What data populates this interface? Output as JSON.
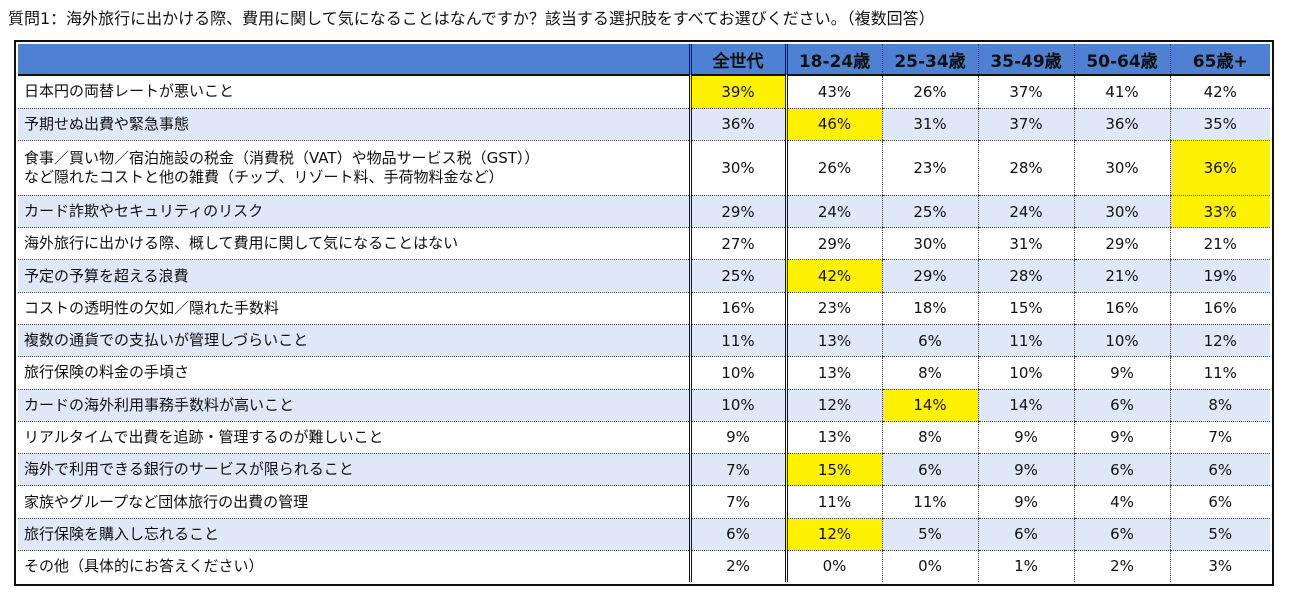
{
  "title": "質問1：海外旅行に出かける際、費用に関して気になることはなんですか？該当する選択肢をすべてお選びください。（複数回答）",
  "colors": {
    "header_bg": "#4f81d3",
    "alt_row_bg": "#dfe8f8",
    "highlight": "#fff200"
  },
  "chart_data": {
    "type": "table",
    "columns": [
      "",
      "全世代",
      "18-24歳",
      "25-34歳",
      "35-49歳",
      "50-64歳",
      "65歳+"
    ],
    "rows": [
      {
        "label": "日本円の両替レートが悪いこと",
        "values": [
          "39%",
          "43%",
          "26%",
          "37%",
          "41%",
          "42%"
        ],
        "highlight": [
          0
        ]
      },
      {
        "label": "予期せぬ出費や緊急事態",
        "values": [
          "36%",
          "46%",
          "31%",
          "37%",
          "36%",
          "35%"
        ],
        "highlight": [
          1
        ]
      },
      {
        "label": "食事／買い物／宿泊施設の税金（消費税（VAT）や物品サービス税（GST））\nなど隠れたコストと他の雑費（チップ、リゾート料、手荷物料金など）",
        "values": [
          "30%",
          "26%",
          "23%",
          "28%",
          "30%",
          "36%"
        ],
        "highlight": [
          5
        ]
      },
      {
        "label": "カード詐欺やセキュリティのリスク",
        "values": [
          "29%",
          "24%",
          "25%",
          "24%",
          "30%",
          "33%"
        ],
        "highlight": [
          5
        ]
      },
      {
        "label": "海外旅行に出かける際、概して費用に関して気になることはない",
        "values": [
          "27%",
          "29%",
          "30%",
          "31%",
          "29%",
          "21%"
        ],
        "highlight": []
      },
      {
        "label": "予定の予算を超える浪費",
        "values": [
          "25%",
          "42%",
          "29%",
          "28%",
          "21%",
          "19%"
        ],
        "highlight": [
          1
        ]
      },
      {
        "label": "コストの透明性の欠如／隠れた手数料",
        "values": [
          "16%",
          "23%",
          "18%",
          "15%",
          "16%",
          "16%"
        ],
        "highlight": []
      },
      {
        "label": "複数の通貨での支払いが管理しづらいこと",
        "values": [
          "11%",
          "13%",
          "6%",
          "11%",
          "10%",
          "12%"
        ],
        "highlight": []
      },
      {
        "label": "旅行保険の料金の手頃さ",
        "values": [
          "10%",
          "13%",
          "8%",
          "10%",
          "9%",
          "11%"
        ],
        "highlight": []
      },
      {
        "label": "カードの海外利用事務手数料が高いこと",
        "values": [
          "10%",
          "12%",
          "14%",
          "14%",
          "6%",
          "8%"
        ],
        "highlight": [
          2
        ]
      },
      {
        "label": "リアルタイムで出費を追跡・管理するのが難しいこと",
        "values": [
          "9%",
          "13%",
          "8%",
          "9%",
          "9%",
          "7%"
        ],
        "highlight": []
      },
      {
        "label": "海外で利用できる銀行のサービスが限られること",
        "values": [
          "7%",
          "15%",
          "6%",
          "9%",
          "6%",
          "6%"
        ],
        "highlight": [
          1
        ]
      },
      {
        "label": "家族やグループなど団体旅行の出費の管理",
        "values": [
          "7%",
          "11%",
          "11%",
          "9%",
          "4%",
          "6%"
        ],
        "highlight": []
      },
      {
        "label": "旅行保険を購入し忘れること",
        "values": [
          "6%",
          "12%",
          "5%",
          "6%",
          "6%",
          "5%"
        ],
        "highlight": [
          1
        ]
      },
      {
        "label": "その他（具体的にお答えください）",
        "values": [
          "2%",
          "0%",
          "0%",
          "1%",
          "2%",
          "3%"
        ],
        "highlight": []
      }
    ]
  }
}
